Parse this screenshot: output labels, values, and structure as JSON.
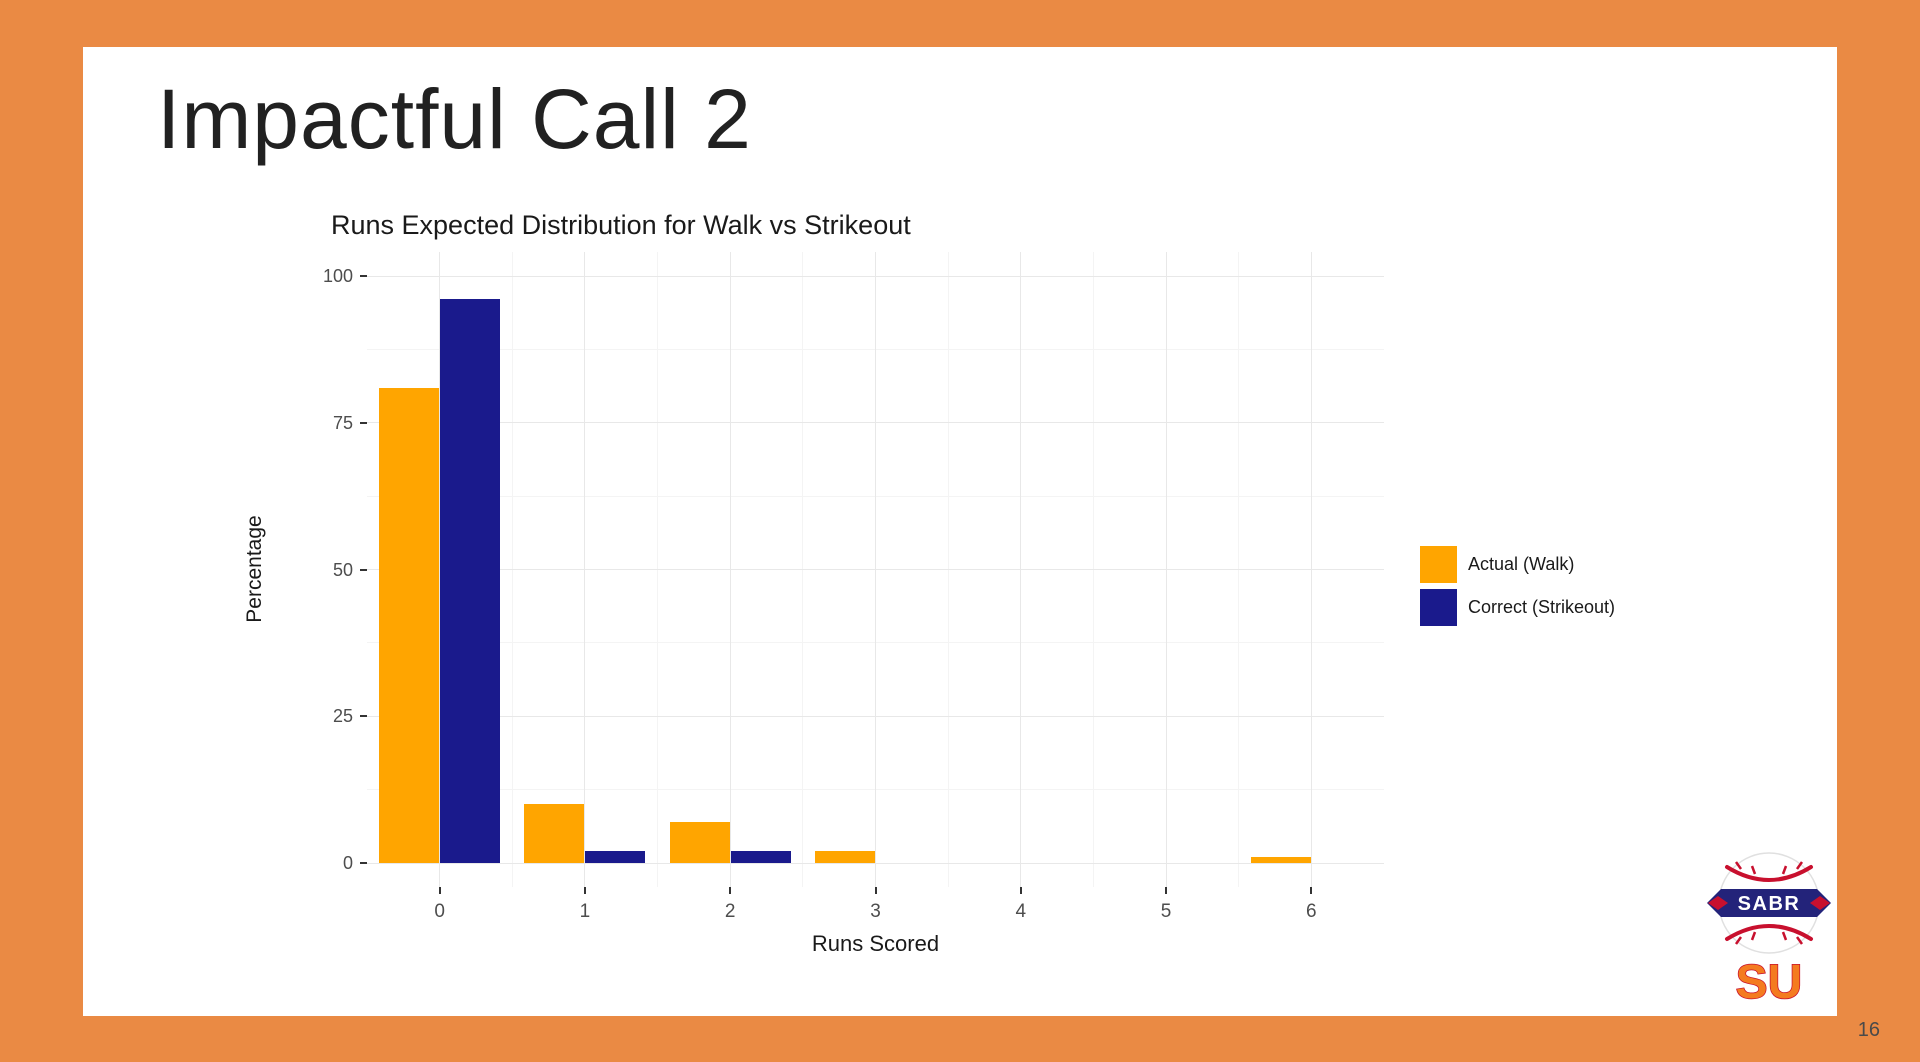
{
  "slide": {
    "title": "Impactful Call 2",
    "page_number": "16"
  },
  "chart_data": {
    "type": "bar",
    "bar_mode": "grouped",
    "title": "Runs Expected Distribution for Walk vs Strikeout",
    "xlabel": "Runs Scored",
    "ylabel": "Percentage",
    "categories": [
      "0",
      "1",
      "2",
      "3",
      "4",
      "5",
      "6"
    ],
    "series": [
      {
        "name": "Actual (Walk)",
        "color": "#FFA500",
        "values": [
          81,
          10,
          7,
          2,
          0,
          0,
          1
        ]
      },
      {
        "name": "Correct (Strikeout)",
        "color": "#1A1A8C",
        "values": [
          96,
          2,
          2,
          0,
          0,
          0,
          0
        ]
      }
    ],
    "ylim": [
      0,
      100
    ],
    "yticks": [
      0,
      25,
      50,
      75,
      100
    ],
    "grid": true,
    "legend_position": "right"
  },
  "logo": {
    "banner_text": "SABR",
    "sub_text": "SU"
  },
  "colors": {
    "frame": "#EA8A44",
    "slide_bg": "#FFFFFF",
    "gridline": "#E8E8E8",
    "axis_text": "#4D4D4D",
    "text": "#1A1A1A",
    "page_number": "#4A4A4A"
  }
}
